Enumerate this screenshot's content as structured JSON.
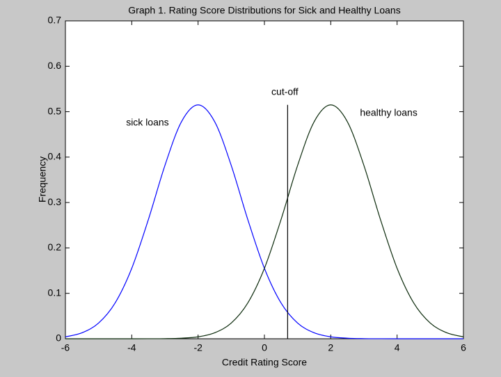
{
  "chart_data": {
    "type": "line",
    "title": "Graph 1. Rating Score Distributions for Sick and Healthy Loans",
    "xlabel": "Credit Rating Score",
    "ylabel": "Frequency",
    "x": [
      -6,
      -5.5,
      -5,
      -4.5,
      -4,
      -3.5,
      -3,
      -2.5,
      -2,
      -1.5,
      -1,
      -0.5,
      0,
      0.5,
      1,
      1.5,
      2,
      2.5,
      3,
      3.5,
      4,
      4.5,
      5,
      5.5,
      6
    ],
    "series": [
      {
        "name": "sick loans",
        "color": "#0000ff",
        "values": [
          0.0042,
          0.0131,
          0.0346,
          0.079,
          0.1551,
          0.2622,
          0.3815,
          0.478,
          0.515,
          0.478,
          0.3815,
          0.2622,
          0.1551,
          0.079,
          0.0346,
          0.0131,
          0.0042,
          0.0012,
          0.0003,
          0.0001,
          0,
          0,
          0,
          0,
          0
        ]
      },
      {
        "name": "healthy loans",
        "color": "#0b2a0b",
        "values": [
          0,
          0,
          0,
          0,
          0,
          0.0001,
          0.0003,
          0.0012,
          0.0042,
          0.0131,
          0.0346,
          0.079,
          0.1551,
          0.2622,
          0.3815,
          0.478,
          0.515,
          0.478,
          0.3815,
          0.2622,
          0.1551,
          0.079,
          0.0346,
          0.0131,
          0.0042
        ]
      }
    ],
    "cutoff": {
      "label": "cut-off",
      "x": 0.7,
      "color": "#000000"
    },
    "xlim": [
      -6,
      6
    ],
    "xticks": [
      -6,
      -4,
      -2,
      0,
      2,
      4,
      6
    ],
    "ylim": [
      0,
      0.7
    ],
    "yticks": [
      0,
      0.1,
      0.2,
      0.3,
      0.4,
      0.5,
      0.6,
      0.7
    ]
  }
}
